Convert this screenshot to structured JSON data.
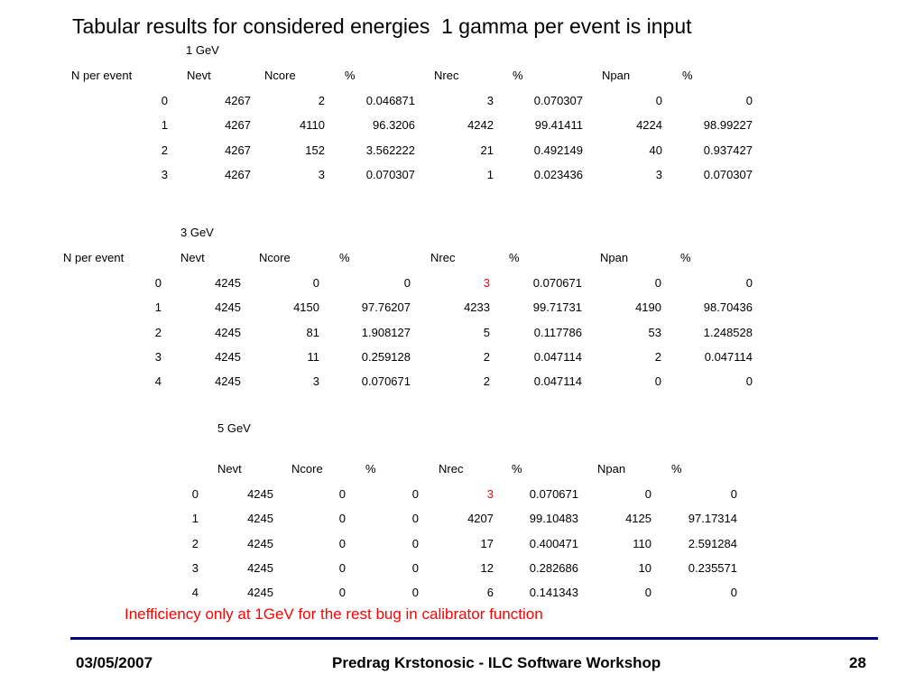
{
  "title": "Tabular results for considered energies  1 gamma per event is input",
  "columns": [
    "N per event",
    "Nevt",
    "Ncore",
    "%",
    "Nrec",
    "%",
    "Npan",
    "%"
  ],
  "sections": [
    {
      "label": "1 GeV",
      "show_first_header": true,
      "rows": [
        [
          "0",
          "4267",
          "2",
          "0.046871",
          "3",
          "0.070307",
          "0",
          "0"
        ],
        [
          "1",
          "4267",
          "4110",
          "96.3206",
          "4242",
          "99.41411",
          "4224",
          "98.99227"
        ],
        [
          "2",
          "4267",
          "152",
          "3.562222",
          "21",
          "0.492149",
          "40",
          "0.937427"
        ],
        [
          "3",
          "4267",
          "3",
          "0.070307",
          "1",
          "0.023436",
          "3",
          "0.070307"
        ]
      ]
    },
    {
      "label": "3 GeV",
      "show_first_header": true,
      "rows": [
        [
          "0",
          "4245",
          "0",
          "0",
          "3",
          "0.070671",
          "0",
          "0"
        ],
        [
          "1",
          "4245",
          "4150",
          "97.76207",
          "4233",
          "99.71731",
          "4190",
          "98.70436"
        ],
        [
          "2",
          "4245",
          "81",
          "1.908127",
          "5",
          "0.117786",
          "53",
          "1.248528"
        ],
        [
          "3",
          "4245",
          "11",
          "0.259128",
          "2",
          "0.047114",
          "2",
          "0.047114"
        ],
        [
          "4",
          "4245",
          "3",
          "0.070671",
          "2",
          "0.047114",
          "0",
          "0"
        ]
      ],
      "highlight": {
        "row": 0,
        "col": 4,
        "color": "#ff0000"
      }
    },
    {
      "label": "5 GeV",
      "show_first_header": false,
      "rows": [
        [
          "0",
          "4245",
          "0",
          "0",
          "3",
          "0.070671",
          "0",
          "0"
        ],
        [
          "1",
          "4245",
          "0",
          "0",
          "4207",
          "99.10483",
          "4125",
          "97.17314"
        ],
        [
          "2",
          "4245",
          "0",
          "0",
          "17",
          "0.400471",
          "110",
          "2.591284"
        ],
        [
          "3",
          "4245",
          "0",
          "0",
          "12",
          "0.282686",
          "10",
          "0.235571"
        ],
        [
          "4",
          "4245",
          "0",
          "0",
          "6",
          "0.141343",
          "0",
          "0"
        ]
      ],
      "highlight": {
        "row": 0,
        "col": 4,
        "color": "#ff0000"
      }
    }
  ],
  "note": "Inefficiency only at 1GeV for the rest bug in calibrator function",
  "footer": {
    "date": "03/05/2007",
    "center": "Predrag Krstonosic - ILC Software Workshop",
    "page": "28"
  },
  "colors": {
    "rule": "#000080",
    "note": "#ff0000"
  }
}
